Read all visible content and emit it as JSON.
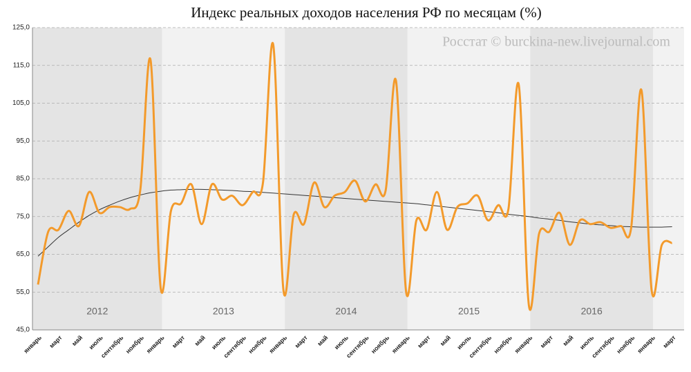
{
  "chart_data": {
    "type": "line",
    "title": "Индекс реальных доходов населения РФ по месяцам (%)",
    "annotation": "Росстат © burckina-new.livejournal.com",
    "categories": [
      "январь",
      null,
      "март",
      null,
      "май",
      null,
      "июль",
      null,
      "сентябрь",
      null,
      "ноябрь",
      null,
      "январь",
      null,
      "март",
      null,
      "май",
      null,
      "июль",
      null,
      "сентябрь",
      null,
      "ноябрь",
      null,
      "январь",
      null,
      "март",
      null,
      "май",
      null,
      "июль",
      null,
      "сентябрь",
      null,
      "ноябрь",
      null,
      "январь",
      null,
      "март",
      null,
      "май",
      null,
      "июль",
      null,
      "сентябрь",
      null,
      "ноябрь",
      null,
      "январь",
      null,
      "март",
      null,
      "май",
      null,
      "июль",
      null,
      "сентябрь",
      null,
      "ноябрь",
      null,
      "январь",
      null,
      "март"
    ],
    "year_labels": [
      "2012",
      "2013",
      "2014",
      "2015",
      "2016"
    ],
    "series": [
      {
        "color": "#f39a2b",
        "values": [
          57,
          71,
          71.5,
          76.5,
          72.5,
          81.5,
          76,
          77.5,
          77.5,
          77,
          82,
          116.5,
          56,
          76.5,
          78.5,
          83.5,
          73,
          83.5,
          79.5,
          80.5,
          78,
          81.5,
          84,
          120.5,
          55.5,
          75.5,
          73,
          84,
          77.5,
          80.5,
          81.5,
          84.5,
          79,
          83.5,
          82,
          111,
          55,
          74,
          71.5,
          81.5,
          71.5,
          77.5,
          78.5,
          80.5,
          74,
          78,
          77,
          110,
          51.5,
          70.5,
          71,
          76,
          67.5,
          74,
          73,
          73.5,
          72,
          72.5,
          72,
          108.5,
          55.5,
          67.5,
          68
        ]
      },
      {
        "color": "#333333",
        "values": [
          64.5,
          67,
          69.5,
          71.5,
          73.5,
          75.3,
          76.8,
          78,
          79.1,
          80,
          80.7,
          81.3,
          81.7,
          82,
          82.1,
          82.2,
          82.2,
          82.1,
          82,
          81.9,
          81.7,
          81.6,
          81.4,
          81.2,
          81,
          80.8,
          80.6,
          80.4,
          80.2,
          80,
          79.8,
          79.6,
          79.4,
          79.2,
          79,
          78.8,
          78.6,
          78.4,
          78.1,
          77.8,
          77.5,
          77.2,
          76.9,
          76.6,
          76.3,
          76,
          75.6,
          75.3,
          75,
          74.6,
          74.3,
          74,
          73.6,
          73.3,
          73,
          72.8,
          72.6,
          72.4,
          72.3,
          72.2,
          72.2,
          72.2,
          72.3
        ]
      }
    ],
    "ylim": [
      45,
      125
    ],
    "yticks": [
      {
        "value": 45,
        "label": "45,0"
      },
      {
        "value": 55,
        "label": "55,0"
      },
      {
        "value": 65,
        "label": "65,0"
      },
      {
        "value": 75,
        "label": "75,0"
      },
      {
        "value": 85,
        "label": "85,0"
      },
      {
        "value": 95,
        "label": "95,0"
      },
      {
        "value": 105,
        "label": "105,0"
      },
      {
        "value": 115,
        "label": "115,0"
      },
      {
        "value": 125,
        "label": "125,0"
      }
    ],
    "grid": true
  }
}
